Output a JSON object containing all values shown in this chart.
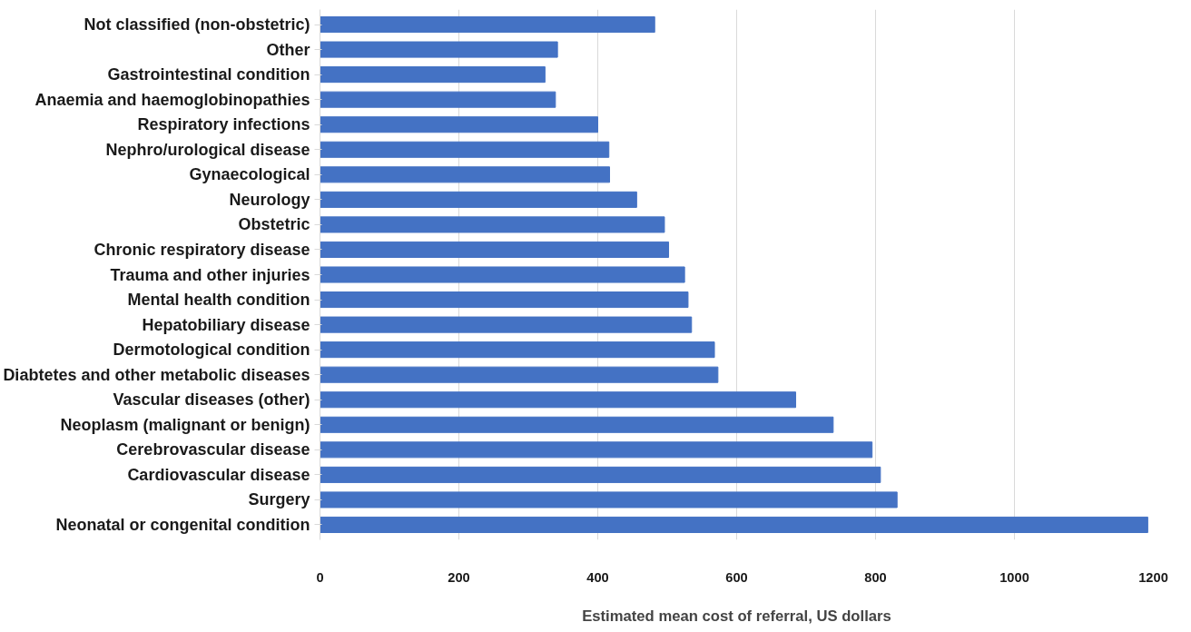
{
  "chart_data": {
    "type": "bar",
    "orientation": "horizontal",
    "xlabel": "Estimated mean cost of referral, US dollars",
    "categories": [
      "Not classified (non-obstetric)",
      "Other",
      "Gastrointestinal condition",
      "Anaemia and haemoglobinopathies",
      "Respiratory infections",
      "Nephro/urological disease",
      "Gynaecological",
      "Neurology",
      "Obstetric",
      "Chronic respiratory disease",
      "Trauma and other injuries",
      "Mental health condition",
      "Hepatobiliary disease",
      "Dermotological condition",
      "Diabtetes and other metabolic diseases",
      "Vascular diseases (other)",
      "Neoplasm (malignant or benign)",
      "Cerebrovascular disease",
      "Cardiovascular disease",
      "Surgery",
      "Neonatal or congenital condition"
    ],
    "values": [
      482,
      342,
      324,
      339,
      400,
      416,
      417,
      456,
      496,
      502,
      525,
      530,
      535,
      568,
      573,
      685,
      739,
      795,
      807,
      831,
      1192
    ],
    "color": "#4472c4",
    "xlim": [
      0,
      1200
    ],
    "xticks": [
      0,
      200,
      400,
      600,
      800,
      1000,
      1200
    ],
    "grid": "x"
  }
}
